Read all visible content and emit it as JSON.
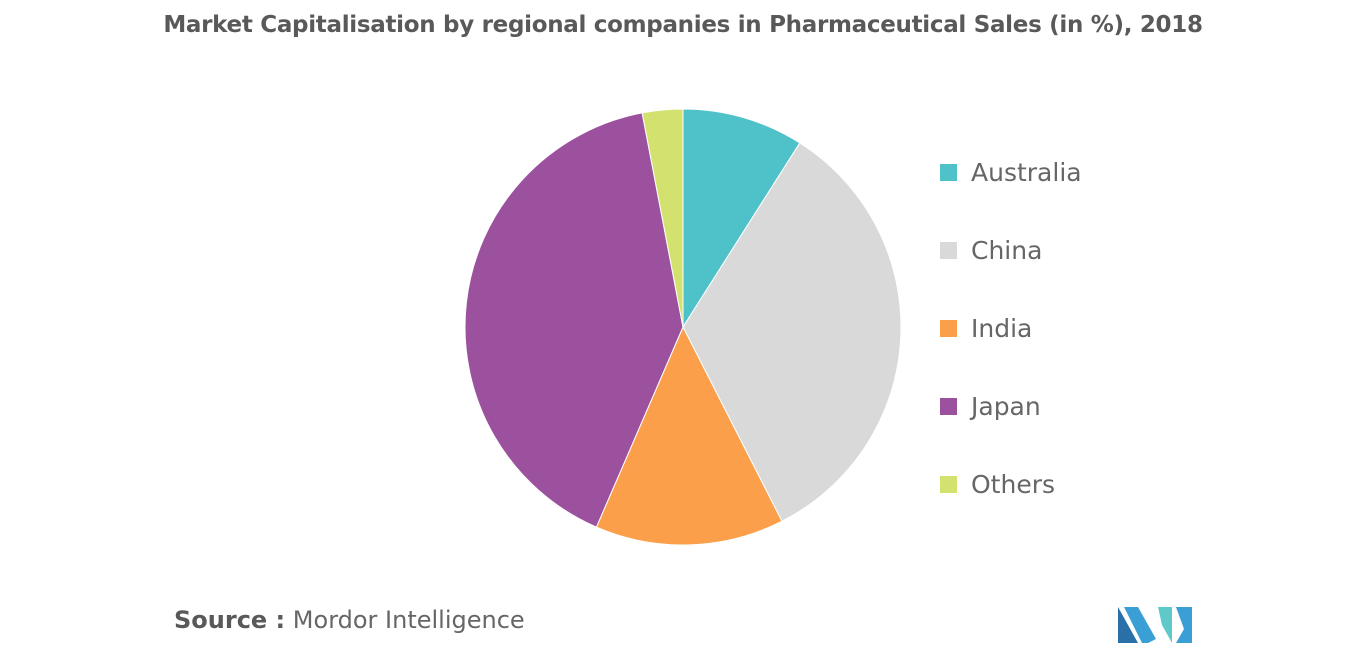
{
  "title": "Market Capitalisation by regional companies in Pharmaceutical Sales (in %), 2018",
  "source": {
    "label": "Source :",
    "text": "Mordor Intelligence"
  },
  "chart_data": {
    "type": "pie",
    "title": "Market Capitalisation by regional companies in Pharmaceutical Sales (in %), 2018",
    "legend_position": "right",
    "slices": [
      {
        "label": "Australia",
        "value": 9.0,
        "color": "#4fc1c9"
      },
      {
        "label": "China",
        "value": 33.5,
        "color": "#d9d9d9"
      },
      {
        "label": "India",
        "value": 14.0,
        "color": "#fb9f4a"
      },
      {
        "label": "Japan",
        "value": 40.5,
        "color": "#9b519e"
      },
      {
        "label": "Others",
        "value": 3.0,
        "color": "#d3e26f"
      }
    ]
  },
  "logo": {
    "icon": "mordor-intelligence-logo",
    "colors": [
      "#3a9fd5",
      "#2a6fa8",
      "#5fc9c9"
    ]
  }
}
